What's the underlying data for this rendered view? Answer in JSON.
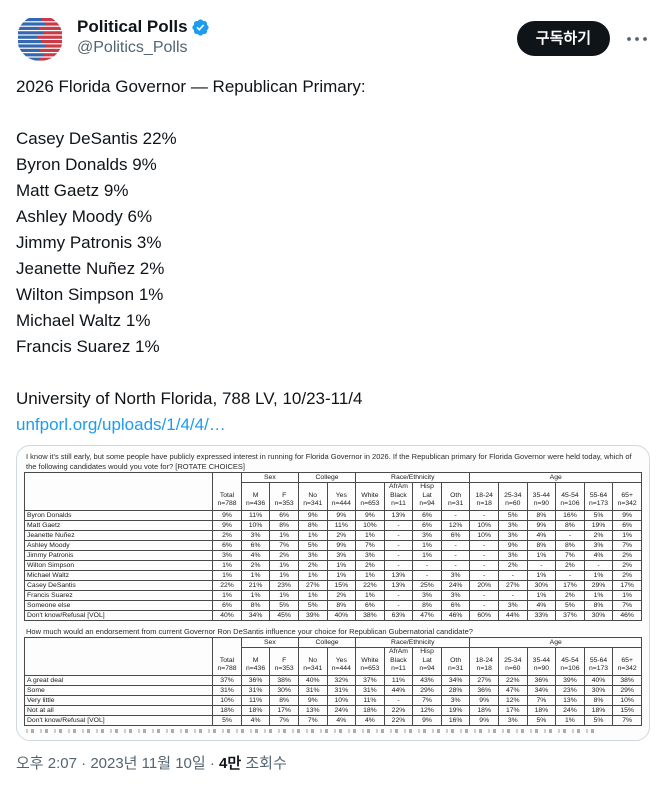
{
  "header": {
    "display_name": "Political Polls",
    "handle": "@Politics_Polls",
    "subscribe_label": "구독하기"
  },
  "tweet": {
    "lines": [
      "2026 Florida Governor — Republican Primary:",
      "",
      "Casey DeSantis 22%",
      "Byron Donalds 9%",
      "Matt Gaetz 9%",
      "Ashley Moody 6%",
      "Jimmy Patronis 3%",
      "Jeanette Nuñez 2%",
      "Wilton Simpson 1%",
      "Michael Waltz 1%",
      "Francis Suarez 1%",
      "",
      "University of North Florida, 788 LV, 10/23-11/4"
    ],
    "link_text": "unfporl.org/uploads/1/4/4/…"
  },
  "poll_image": {
    "question1": "I know it's still early, but some people have publicly expressed interest in running for Florida Governor in 2026. If the Republican primary for Florida Governor were held today, which of the following candidates would you vote for? [ROTATE CHOICES]",
    "question2": "How much would an endorsement from current Governor Ron DeSantis influence your choice for Republican Gubernatorial candidate?",
    "columns": {
      "total": [
        "Total",
        "n=788"
      ],
      "groups": [
        {
          "label": "Sex",
          "span": 2
        },
        {
          "label": "College",
          "span": 2
        },
        {
          "label": "Race/Ethnicity",
          "span": 4
        },
        {
          "label": "Age",
          "span": 6
        }
      ],
      "headers": [
        [
          "M",
          "n=436"
        ],
        [
          "F",
          "n=353"
        ],
        [
          "No",
          "n=341"
        ],
        [
          "Yes",
          "n=444"
        ],
        [
          "White",
          "n=653"
        ],
        [
          "AfrAm",
          "Black",
          "n=11"
        ],
        [
          "Hisp",
          "Lat",
          "n=94"
        ],
        [
          "Oth",
          "n=31"
        ],
        [
          "18-24",
          "n=18"
        ],
        [
          "25-34",
          "n=60"
        ],
        [
          "35-44",
          "n=90"
        ],
        [
          "45-54",
          "n=106"
        ],
        [
          "55-64",
          "n=173"
        ],
        [
          "65+",
          "n=342"
        ]
      ]
    },
    "table1": {
      "rows": [
        {
          "label": "Byron Donalds",
          "values": [
            "9%",
            "11%",
            "6%",
            "9%",
            "9%",
            "9%",
            "13%",
            "6%",
            "-",
            "-",
            "5%",
            "8%",
            "16%",
            "5%",
            "9%"
          ]
        },
        {
          "label": "Matt Gaetz",
          "values": [
            "9%",
            "10%",
            "8%",
            "8%",
            "11%",
            "10%",
            "-",
            "6%",
            "12%",
            "10%",
            "3%",
            "9%",
            "8%",
            "19%",
            "6%"
          ]
        },
        {
          "label": "Jeanette Nuñez",
          "values": [
            "2%",
            "3%",
            "1%",
            "1%",
            "2%",
            "1%",
            "-",
            "3%",
            "6%",
            "10%",
            "3%",
            "4%",
            "-",
            "2%",
            "1%"
          ]
        },
        {
          "label": "Ashley Moody",
          "values": [
            "6%",
            "6%",
            "7%",
            "5%",
            "9%",
            "7%",
            "-",
            "1%",
            "-",
            "-",
            "9%",
            "8%",
            "8%",
            "3%",
            "7%"
          ]
        },
        {
          "label": "Jimmy Patronis",
          "values": [
            "3%",
            "4%",
            "2%",
            "3%",
            "3%",
            "3%",
            "-",
            "1%",
            "-",
            "-",
            "3%",
            "1%",
            "7%",
            "4%",
            "2%"
          ]
        },
        {
          "label": "Wilton Simpson",
          "values": [
            "1%",
            "2%",
            "1%",
            "2%",
            "1%",
            "2%",
            "-",
            "-",
            "-",
            "-",
            "2%",
            "-",
            "2%",
            "-",
            "2%"
          ]
        },
        {
          "label": "Michael Waltz",
          "values": [
            "1%",
            "1%",
            "1%",
            "1%",
            "1%",
            "1%",
            "13%",
            "-",
            "3%",
            "-",
            "-",
            "1%",
            "-",
            "1%",
            "2%"
          ]
        },
        {
          "label": "Casey DeSantis",
          "values": [
            "22%",
            "21%",
            "23%",
            "27%",
            "15%",
            "22%",
            "13%",
            "25%",
            "24%",
            "20%",
            "27%",
            "30%",
            "17%",
            "29%",
            "17%"
          ]
        },
        {
          "label": "Francis Suarez",
          "values": [
            "1%",
            "1%",
            "1%",
            "1%",
            "2%",
            "1%",
            "-",
            "3%",
            "3%",
            "-",
            "-",
            "1%",
            "2%",
            "1%",
            "1%"
          ]
        },
        {
          "label": "Someone else",
          "values": [
            "6%",
            "8%",
            "5%",
            "5%",
            "8%",
            "6%",
            "-",
            "8%",
            "6%",
            "-",
            "3%",
            "4%",
            "5%",
            "8%",
            "7%"
          ]
        },
        {
          "label": "Don't know/Refusal [VOL]",
          "values": [
            "40%",
            "34%",
            "45%",
            "39%",
            "40%",
            "38%",
            "63%",
            "47%",
            "46%",
            "60%",
            "44%",
            "33%",
            "37%",
            "30%",
            "46%"
          ]
        }
      ]
    },
    "table2": {
      "rows": [
        {
          "label": "A great deal",
          "values": [
            "37%",
            "36%",
            "38%",
            "40%",
            "32%",
            "37%",
            "11%",
            "43%",
            "34%",
            "27%",
            "22%",
            "36%",
            "39%",
            "40%",
            "38%"
          ]
        },
        {
          "label": "Some",
          "values": [
            "31%",
            "31%",
            "30%",
            "31%",
            "31%",
            "31%",
            "44%",
            "29%",
            "28%",
            "36%",
            "47%",
            "34%",
            "23%",
            "30%",
            "29%"
          ]
        },
        {
          "label": "Very little",
          "values": [
            "10%",
            "11%",
            "8%",
            "9%",
            "10%",
            "11%",
            "-",
            "7%",
            "3%",
            "9%",
            "12%",
            "7%",
            "13%",
            "8%",
            "10%"
          ]
        },
        {
          "label": "Not at all",
          "values": [
            "18%",
            "18%",
            "17%",
            "13%",
            "24%",
            "18%",
            "22%",
            "12%",
            "19%",
            "18%",
            "17%",
            "18%",
            "24%",
            "18%",
            "15%"
          ]
        },
        {
          "label": "Don't know/Refusal [VOL]",
          "values": [
            "5%",
            "4%",
            "7%",
            "7%",
            "4%",
            "4%",
            "22%",
            "9%",
            "16%",
            "9%",
            "3%",
            "5%",
            "1%",
            "5%",
            "7%"
          ]
        }
      ]
    }
  },
  "footer": {
    "time": "오후 2:07",
    "separator": "·",
    "date": "2023년 11월 10일",
    "views_count": "4만",
    "views_label": "조회수"
  },
  "colors": {
    "accent_blue": "#1d9bf0",
    "text_primary": "#0f1419",
    "text_secondary": "#536471",
    "button_bg": "#0f1419",
    "card_border": "#cfd9de",
    "avatar_blue": "#3668b0",
    "avatar_red": "#c93b46"
  }
}
